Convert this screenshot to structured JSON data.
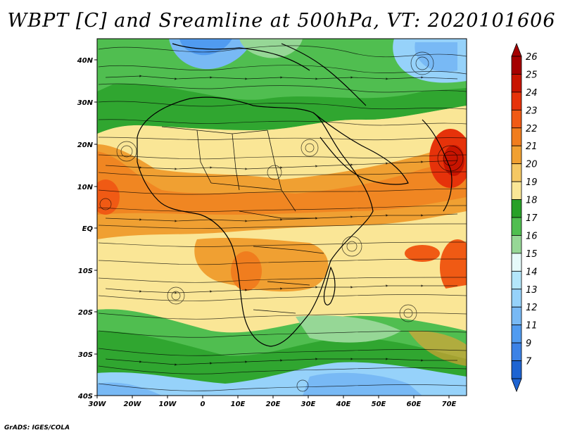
{
  "title": "WBPT [C] and Sreamline at 500hPa, VT: 2020101606",
  "credit": "GrADS: IGES/COLA",
  "map": {
    "lat_labels": [
      "40N",
      "30N",
      "20N",
      "10N",
      "EQ",
      "10S",
      "20S",
      "30S",
      "40S"
    ],
    "lon_labels": [
      "30W",
      "20W",
      "10W",
      "0",
      "10E",
      "20E",
      "30E",
      "40E",
      "50E",
      "60E",
      "70E"
    ],
    "lon_range": [
      -30,
      75
    ],
    "lat_range": [
      -40,
      45
    ]
  },
  "colorbar": {
    "labels": [
      "26",
      "25",
      "24",
      "23",
      "22",
      "21",
      "20",
      "19",
      "18",
      "17",
      "16",
      "15",
      "14",
      "13",
      "12",
      "11",
      "9",
      "7"
    ],
    "colors": [
      "#a50000",
      "#c81400",
      "#e6320a",
      "#f05a14",
      "#f07d1e",
      "#f0a032",
      "#f5c864",
      "#fae696",
      "#28a028",
      "#50be50",
      "#96d796",
      "#e6fafa",
      "#b4e6fa",
      "#96d2fa",
      "#78b9f5",
      "#509bf0",
      "#3c82e6",
      "#1e64d2"
    ]
  }
}
